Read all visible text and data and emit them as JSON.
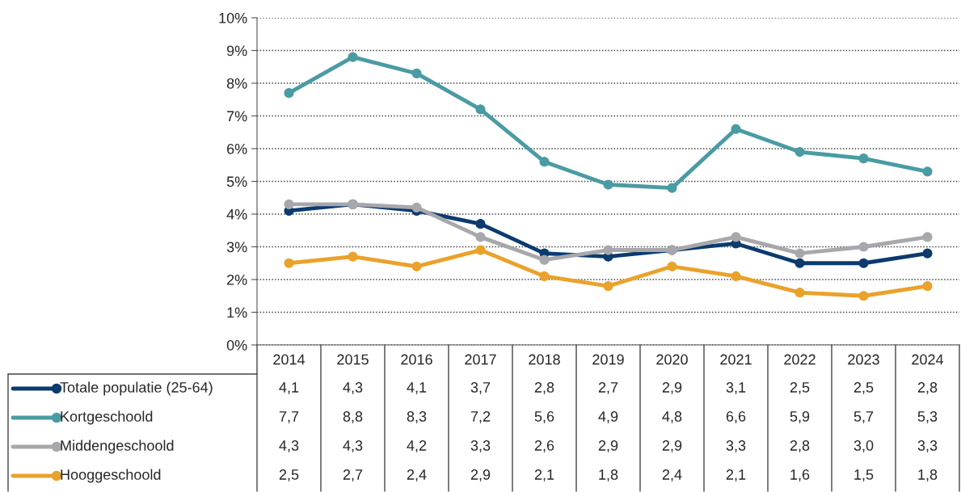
{
  "chart_data": {
    "type": "line",
    "categories": [
      "2014",
      "2015",
      "2016",
      "2017",
      "2018",
      "2019",
      "2020",
      "2021",
      "2022",
      "2023",
      "2024"
    ],
    "ylim": [
      0,
      10
    ],
    "yticks": [
      {
        "value": 0,
        "label": "0%"
      },
      {
        "value": 1,
        "label": "1%"
      },
      {
        "value": 2,
        "label": "2%"
      },
      {
        "value": 3,
        "label": "3%"
      },
      {
        "value": 4,
        "label": "4%"
      },
      {
        "value": 5,
        "label": "5%"
      },
      {
        "value": 6,
        "label": "6%"
      },
      {
        "value": 7,
        "label": "7%"
      },
      {
        "value": 8,
        "label": "8%"
      },
      {
        "value": 9,
        "label": "9%"
      },
      {
        "value": 10,
        "label": "10%"
      }
    ],
    "grid": "y",
    "marker": "circle",
    "line_style": "solid",
    "legend": "bottom",
    "series": [
      {
        "name": "Totale populatie (25-64)",
        "color": "#0b3b6f",
        "values": [
          4.1,
          4.3,
          4.1,
          3.7,
          2.8,
          2.7,
          2.9,
          3.1,
          2.5,
          2.5,
          2.8
        ],
        "value_labels": [
          "4,1",
          "4,3",
          "4,1",
          "3,7",
          "2,8",
          "2,7",
          "2,9",
          "3,1",
          "2,5",
          "2,5",
          "2,8"
        ]
      },
      {
        "name": "Kortgeschoold",
        "color": "#4a9ba3",
        "values": [
          7.7,
          8.8,
          8.3,
          7.2,
          5.6,
          4.9,
          4.8,
          6.6,
          5.9,
          5.7,
          5.3
        ],
        "value_labels": [
          "7,7",
          "8,8",
          "8,3",
          "7,2",
          "5,6",
          "4,9",
          "4,8",
          "6,6",
          "5,9",
          "5,7",
          "5,3"
        ]
      },
      {
        "name": "Middengeschoold",
        "color": "#a8a8ac",
        "values": [
          4.3,
          4.3,
          4.2,
          3.3,
          2.6,
          2.9,
          2.9,
          3.3,
          2.8,
          3.0,
          3.3
        ],
        "value_labels": [
          "4,3",
          "4,3",
          "4,2",
          "3,3",
          "2,6",
          "2,9",
          "2,9",
          "3,3",
          "2,8",
          "3,0",
          "3,3"
        ]
      },
      {
        "name": "Hooggeschoold",
        "color": "#e9a22b",
        "values": [
          2.5,
          2.7,
          2.4,
          2.9,
          2.1,
          1.8,
          2.4,
          2.1,
          1.6,
          1.5,
          1.8
        ],
        "value_labels": [
          "2,5",
          "2,7",
          "2,4",
          "2,9",
          "2,1",
          "1,8",
          "2,4",
          "2,1",
          "1,6",
          "1,5",
          "1,8"
        ]
      }
    ]
  }
}
